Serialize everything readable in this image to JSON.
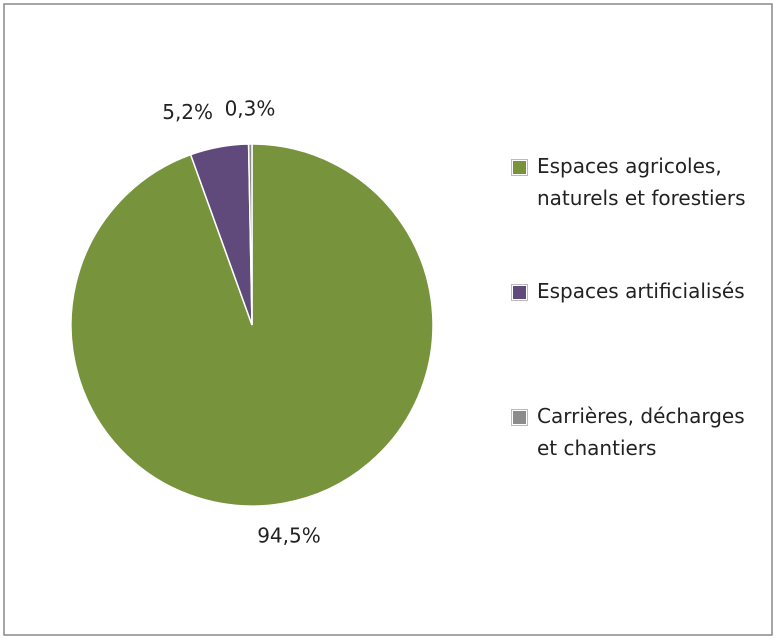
{
  "chart_data": {
    "type": "pie",
    "categories": [
      "Espaces agricoles, naturels et forestiers",
      "Espaces artificialisés",
      "Carrières, décharges et chantiers"
    ],
    "values": [
      94.5,
      5.2,
      0.3
    ],
    "value_labels": [
      "94,5%",
      "5,2%",
      "0,3%"
    ],
    "colors": [
      "#77933c",
      "#604a7b",
      "#8c8c8c"
    ]
  }
}
